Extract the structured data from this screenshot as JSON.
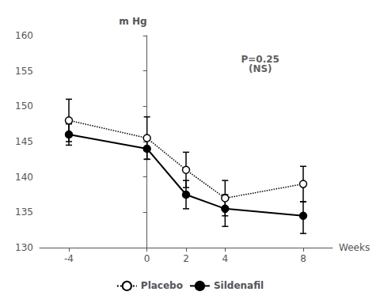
{
  "chart_data": {
    "type": "line",
    "x": [
      -4,
      0,
      2,
      4,
      8
    ],
    "xlim": [
      -5.5,
      9.5
    ],
    "xticks": [
      -4,
      0,
      2,
      4,
      8
    ],
    "ylim": [
      130,
      160
    ],
    "yticks": [
      130,
      135,
      140,
      145,
      150,
      155,
      160
    ],
    "xlabel": "Weeks",
    "ylabel": "m Hg",
    "grid": false,
    "legend": "bottom",
    "annotations": [
      {
        "text": "P=0.25\n(NS)",
        "x": 5.8,
        "y": 157.5
      }
    ],
    "series": [
      {
        "name": "Placebo",
        "color": "#000000",
        "line_style": "dotted",
        "marker": "open_circle",
        "values": [
          148,
          145.5,
          141,
          137,
          139
        ],
        "yerr_lower": [
          3.0,
          3.0,
          2.5,
          2.5,
          2.5
        ],
        "yerr_upper": [
          3.0,
          3.0,
          2.5,
          2.5,
          2.5
        ]
      },
      {
        "name": "Sildenafil",
        "color": "#000000",
        "line_style": "solid",
        "marker": "circle",
        "values": [
          146,
          144,
          137.5,
          135.5,
          134.5
        ],
        "yerr_lower": [
          1.5,
          1.5,
          2.0,
          2.5,
          2.5
        ],
        "yerr_upper": [
          1.5,
          1.5,
          2.0,
          2.0,
          2.0
        ]
      }
    ]
  }
}
